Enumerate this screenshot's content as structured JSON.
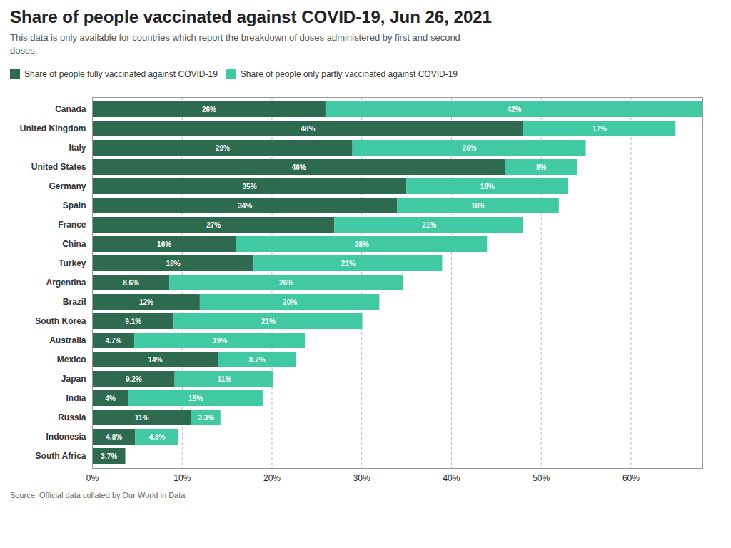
{
  "chart_data": {
    "type": "bar",
    "orientation": "horizontal",
    "stacked": true,
    "title": "Share of people vaccinated against COVID-19, Jun 26, 2021",
    "subtitle": "This data is only available for countries which report the breakdown of doses administered by first and second\ndoses.",
    "source": "Source: Official data collated by Our World in Data",
    "categories": [
      "Canada",
      "United Kingdom",
      "Italy",
      "United States",
      "Germany",
      "Spain",
      "France",
      "China",
      "Turkey",
      "Argentina",
      "Brazil",
      "South Korea",
      "Australia",
      "Mexico",
      "Japan",
      "India",
      "Russia",
      "Indonesia",
      "South Africa"
    ],
    "series": [
      {
        "name": "Share of people fully vaccinated against COVID-19",
        "color": "#2d6a4f",
        "values": [
          26,
          48,
          29,
          46,
          35,
          34,
          27,
          16,
          18,
          8.6,
          12,
          9.1,
          4.7,
          14,
          9.2,
          4,
          11,
          4.8,
          3.7
        ],
        "value_labels": [
          "26%",
          "48%",
          "29%",
          "46%",
          "35%",
          "34%",
          "27%",
          "16%",
          "18%",
          "8.6%",
          "12%",
          "9.1%",
          "4.7%",
          "14%",
          "9.2%",
          "4%",
          "11%",
          "4.8%",
          "3.7%"
        ]
      },
      {
        "name": "Share of people only partly vaccinated against COVID-19",
        "color": "#40c9a2",
        "values": [
          42,
          17,
          26,
          8,
          18,
          18,
          21,
          28,
          21,
          26,
          20,
          21,
          19,
          8.7,
          11,
          15,
          3.3,
          4.8,
          0
        ],
        "value_labels": [
          "42%",
          "17%",
          "26%",
          "8%",
          "18%",
          "18%",
          "21%",
          "28%",
          "21%",
          "26%",
          "20%",
          "21%",
          "19%",
          "8.7%",
          "11%",
          "15%",
          "3.3%",
          "4.8%",
          null
        ]
      }
    ],
    "xlim": [
      0,
      68
    ],
    "xticks": [
      {
        "value": 0,
        "label": "0%"
      },
      {
        "value": 10,
        "label": "10%"
      },
      {
        "value": 20,
        "label": "20%"
      },
      {
        "value": 30,
        "label": "30%"
      },
      {
        "value": 40,
        "label": "40%"
      },
      {
        "value": 50,
        "label": "50%"
      },
      {
        "value": 60,
        "label": "60%"
      }
    ],
    "grid": true,
    "data_labels": true,
    "legend": "top"
  }
}
